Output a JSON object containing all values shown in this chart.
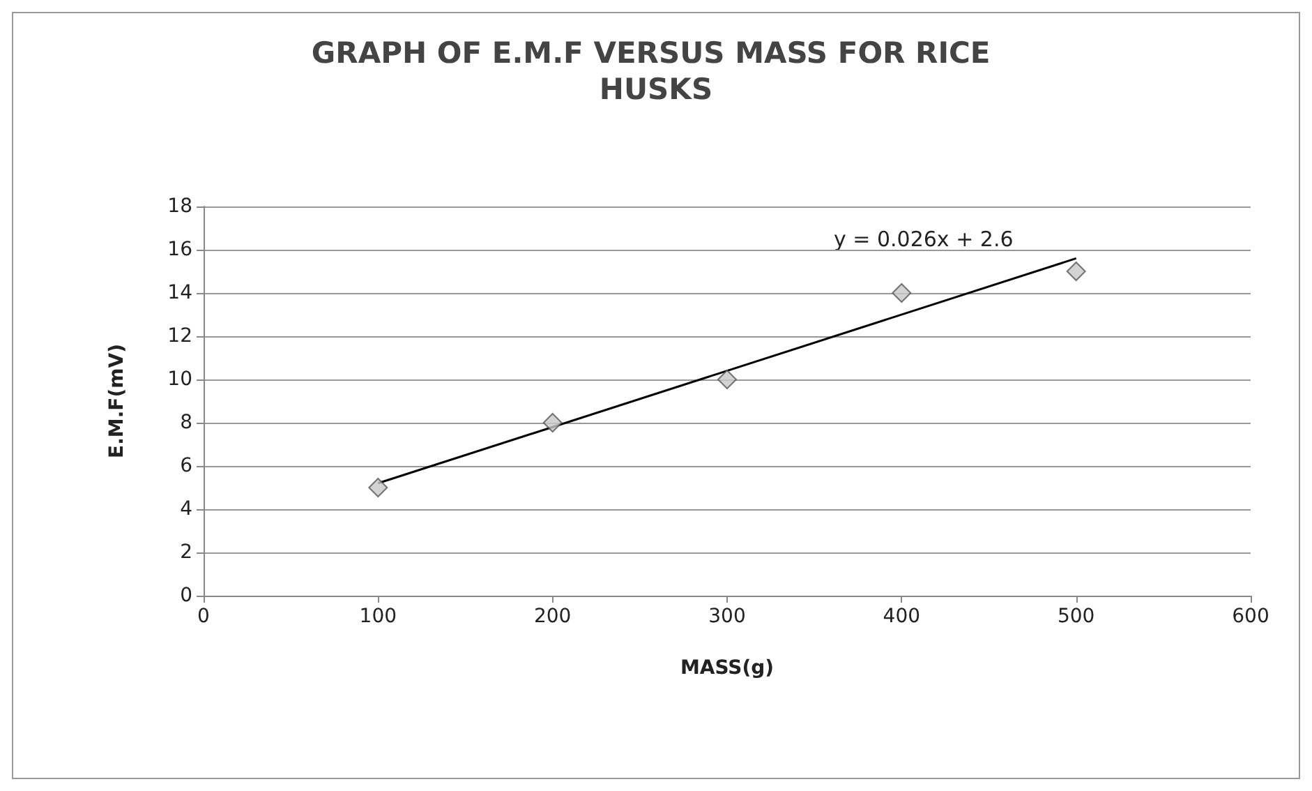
{
  "chart_data": {
    "type": "scatter",
    "title": "GRAPH OF E.M.F VERSUS MASS FOR RICE HUSKS",
    "xlabel": "MASS(g)",
    "ylabel": "E.M.F(mV)",
    "x": [
      100,
      200,
      300,
      400,
      500
    ],
    "series": [
      {
        "color": "#c8c8c8",
        "values": [
          5,
          8,
          10,
          14,
          15
        ],
        "marker": "diamond"
      },
      {
        "type": "line",
        "color": "#000000",
        "x": [
          100,
          500
        ],
        "values": [
          5.2,
          15.6
        ],
        "marker": "none",
        "line_style": "solid"
      }
    ],
    "annotations": [
      "y = 0.026x + 2.6"
    ],
    "xlim": [
      0,
      600
    ],
    "xticks": [
      0,
      100,
      200,
      300,
      400,
      500,
      600
    ],
    "ylim": [
      0,
      18
    ],
    "yticks": [
      0,
      2,
      4,
      6,
      8,
      10,
      12,
      14,
      16,
      18
    ],
    "grid": "y"
  }
}
